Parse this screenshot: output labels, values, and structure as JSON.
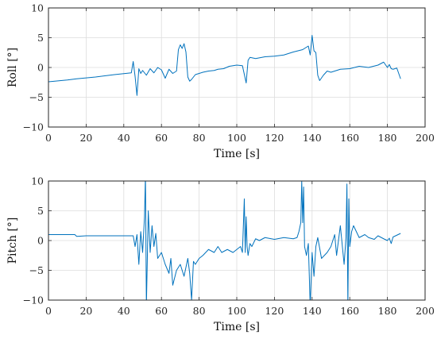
{
  "chart_data": [
    {
      "type": "line",
      "xlabel": "Time [s]",
      "ylabel": "Roll [°]",
      "xlim": [
        0,
        200
      ],
      "ylim": [
        -10,
        10
      ],
      "xticks": [
        0,
        20,
        40,
        60,
        80,
        100,
        120,
        140,
        160,
        180,
        200
      ],
      "yticks": [
        -10,
        -5,
        0,
        5,
        10
      ],
      "grid": true,
      "series": [
        {
          "color": "#0072BD",
          "x": [
            0,
            10,
            15,
            25,
            35,
            44,
            45,
            46,
            47,
            48,
            49,
            50,
            52,
            54,
            56,
            58,
            60,
            62,
            64,
            66,
            68,
            69,
            70,
            71,
            72,
            73,
            74,
            75,
            76,
            78,
            80,
            82,
            85,
            88,
            90,
            93,
            96,
            100,
            103,
            105,
            106,
            107,
            110,
            115,
            120,
            125,
            130,
            135,
            138,
            139,
            140,
            141,
            142,
            143,
            144,
            146,
            148,
            150,
            155,
            160,
            165,
            170,
            175,
            178,
            180,
            181,
            182,
            183,
            185,
            186,
            187
          ],
          "y": [
            -2.4,
            -2.1,
            -1.9,
            -1.6,
            -1.2,
            -0.9,
            1.0,
            -1.5,
            -4.7,
            -0.2,
            -1.0,
            -0.5,
            -1.3,
            -0.2,
            -0.9,
            0.0,
            -0.4,
            -1.8,
            -0.3,
            -1.0,
            -0.6,
            3.0,
            3.8,
            3.2,
            4.0,
            2.6,
            -1.6,
            -2.3,
            -2.0,
            -1.2,
            -1.0,
            -0.8,
            -0.6,
            -0.5,
            -0.3,
            -0.2,
            0.2,
            0.4,
            0.3,
            -2.6,
            1.2,
            1.7,
            1.5,
            1.8,
            1.9,
            2.1,
            2.6,
            3.0,
            3.6,
            2.1,
            5.4,
            2.8,
            2.5,
            -1.3,
            -2.2,
            -1.3,
            -0.6,
            -0.8,
            -0.3,
            -0.2,
            0.2,
            0.0,
            0.4,
            0.9,
            0.0,
            0.5,
            -0.2,
            -0.3,
            -0.1,
            -1.0,
            -1.9
          ]
        }
      ]
    },
    {
      "type": "line",
      "xlabel": "Time [s]",
      "ylabel": "Pitch [°]",
      "xlim": [
        0,
        200
      ],
      "ylim": [
        -10,
        10
      ],
      "xticks": [
        0,
        20,
        40,
        60,
        80,
        100,
        120,
        140,
        160,
        180,
        200
      ],
      "yticks": [
        -10,
        -5,
        0,
        5,
        10
      ],
      "grid": true,
      "series": [
        {
          "color": "#0072BD",
          "x": [
            0,
            10,
            14,
            15,
            20,
            30,
            40,
            45,
            46,
            47,
            48,
            49,
            50,
            51,
            51.5,
            52,
            53,
            54,
            55,
            56,
            57,
            58,
            60,
            62,
            64,
            65,
            66,
            68,
            70,
            72,
            74,
            75,
            76,
            77,
            78,
            80,
            82,
            85,
            88,
            90,
            92,
            95,
            98,
            100,
            102,
            103,
            104,
            104.5,
            105,
            105.5,
            106,
            107,
            108,
            110,
            112,
            115,
            120,
            125,
            130,
            132,
            133,
            134,
            134.5,
            135,
            135.5,
            136,
            137,
            138,
            139,
            140,
            141,
            142,
            143,
            145,
            148,
            150,
            152,
            153,
            155,
            157,
            158,
            158.5,
            159,
            159.5,
            160,
            161,
            162,
            165,
            168,
            170,
            173,
            175,
            178,
            180,
            181,
            182,
            183,
            185,
            187
          ],
          "y": [
            1.0,
            1.0,
            1.0,
            0.7,
            0.8,
            0.8,
            0.8,
            0.8,
            -1.0,
            1.0,
            -4.0,
            1.5,
            -2.0,
            4.0,
            11.0,
            -11.0,
            5.0,
            -2.0,
            2.5,
            -1.0,
            1.2,
            -3.0,
            -2.0,
            -4.0,
            -5.5,
            -3.0,
            -7.5,
            -5.0,
            -4.0,
            -6.0,
            -3.0,
            -5.5,
            -10.0,
            -3.5,
            -4.0,
            -3.0,
            -2.5,
            -1.5,
            -2.0,
            -1.0,
            -2.0,
            -1.5,
            -2.0,
            -1.5,
            -1.0,
            -2.0,
            7.0,
            -2.0,
            4.0,
            -1.0,
            -2.5,
            -0.5,
            -1.0,
            0.3,
            0.0,
            0.5,
            0.2,
            0.5,
            0.3,
            0.5,
            1.5,
            3.0,
            10.0,
            3.0,
            9.0,
            -1.0,
            -2.5,
            -0.5,
            -11.0,
            -2.0,
            -6.0,
            -1.0,
            0.5,
            -3.0,
            -2.0,
            -1.0,
            1.0,
            -2.5,
            2.5,
            -4.0,
            0.5,
            9.5,
            -11.0,
            7.0,
            -1.0,
            1.5,
            2.5,
            0.5,
            1.0,
            0.5,
            0.2,
            0.8,
            0.3,
            0.0,
            0.4,
            -0.5,
            0.6,
            0.9,
            1.2
          ]
        }
      ]
    }
  ]
}
